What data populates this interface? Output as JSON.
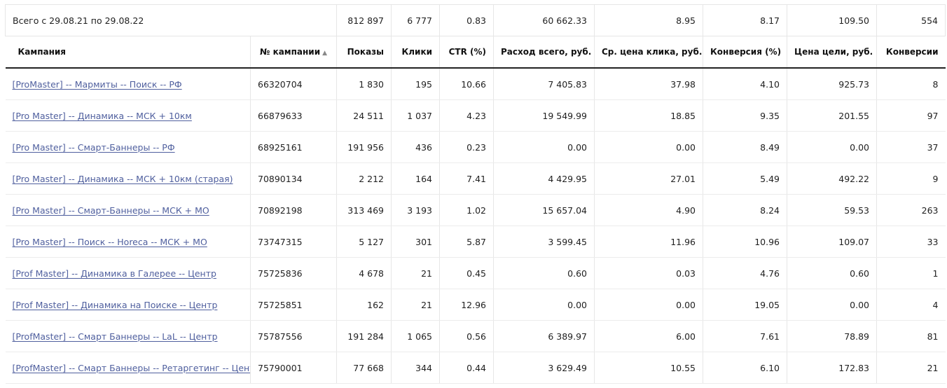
{
  "total": {
    "label": "Всего с 29.08.21 по 29.08.22",
    "impressions": "812 897",
    "clicks": "6 777",
    "ctr": "0.83",
    "spend": "60 662.33",
    "cpc": "8.95",
    "conversion_rate": "8.17",
    "goal_cost": "109.50",
    "conversions": "554"
  },
  "columns": {
    "name": "Кампания",
    "number": "№ кампании",
    "impressions": "Показы",
    "clicks": "Клики",
    "ctr": "CTR (%)",
    "spend": "Расход всего, руб.",
    "cpc": "Ср. цена клика, руб.",
    "conversion_rate": "Конверсия (%)",
    "goal_cost": "Цена цели, руб.",
    "conversions": "Конверсии"
  },
  "sort_indicator": "▲",
  "rows": [
    {
      "name": "[ProMaster] -- Мармиты -- Поиск -- РФ",
      "number": "66320704",
      "impressions": "1 830",
      "clicks": "195",
      "ctr": "10.66",
      "spend": "7 405.83",
      "cpc": "37.98",
      "conversion_rate": "4.10",
      "goal_cost": "925.73",
      "conversions": "8"
    },
    {
      "name": "[Pro Master] -- Динамика -- МСК + 10км",
      "number": "66879633",
      "impressions": "24 511",
      "clicks": "1 037",
      "ctr": "4.23",
      "spend": "19 549.99",
      "cpc": "18.85",
      "conversion_rate": "9.35",
      "goal_cost": "201.55",
      "conversions": "97"
    },
    {
      "name": "[Pro Master] -- Смарт-Баннеры -- РФ",
      "number": "68925161",
      "impressions": "191 956",
      "clicks": "436",
      "ctr": "0.23",
      "spend": "0.00",
      "cpc": "0.00",
      "conversion_rate": "8.49",
      "goal_cost": "0.00",
      "conversions": "37"
    },
    {
      "name": "[Pro Master] -- Динамика -- МСК + 10км (старая)",
      "number": "70890134",
      "impressions": "2 212",
      "clicks": "164",
      "ctr": "7.41",
      "spend": "4 429.95",
      "cpc": "27.01",
      "conversion_rate": "5.49",
      "goal_cost": "492.22",
      "conversions": "9"
    },
    {
      "name": "[Pro Master] -- Смарт-Баннеры -- МСК + МО",
      "number": "70892198",
      "impressions": "313 469",
      "clicks": "3 193",
      "ctr": "1.02",
      "spend": "15 657.04",
      "cpc": "4.90",
      "conversion_rate": "8.24",
      "goal_cost": "59.53",
      "conversions": "263"
    },
    {
      "name": "[Pro Master] -- Поиск -- Horeca -- МСК + МО",
      "number": "73747315",
      "impressions": "5 127",
      "clicks": "301",
      "ctr": "5.87",
      "spend": "3 599.45",
      "cpc": "11.96",
      "conversion_rate": "10.96",
      "goal_cost": "109.07",
      "conversions": "33"
    },
    {
      "name": "[Prof Master] -- Динамика в Галерее -- Центр",
      "number": "75725836",
      "impressions": "4 678",
      "clicks": "21",
      "ctr": "0.45",
      "spend": "0.60",
      "cpc": "0.03",
      "conversion_rate": "4.76",
      "goal_cost": "0.60",
      "conversions": "1"
    },
    {
      "name": "[Prof Master] -- Динамика на Поиске -- Центр",
      "number": "75725851",
      "impressions": "162",
      "clicks": "21",
      "ctr": "12.96",
      "spend": "0.00",
      "cpc": "0.00",
      "conversion_rate": "19.05",
      "goal_cost": "0.00",
      "conversions": "4"
    },
    {
      "name": "[ProfMaster] -- Смарт Баннеры -- LaL -- Центр",
      "number": "75787556",
      "impressions": "191 284",
      "clicks": "1 065",
      "ctr": "0.56",
      "spend": "6 389.97",
      "cpc": "6.00",
      "conversion_rate": "7.61",
      "goal_cost": "78.89",
      "conversions": "81"
    },
    {
      "name": "[ProfMaster] -- Смарт Баннеры -- Ретаргетинг -- Центр",
      "number": "75790001",
      "impressions": "77 668",
      "clicks": "344",
      "ctr": "0.44",
      "spend": "3 629.49",
      "cpc": "10.55",
      "conversion_rate": "6.10",
      "goal_cost": "172.83",
      "conversions": "21"
    }
  ]
}
